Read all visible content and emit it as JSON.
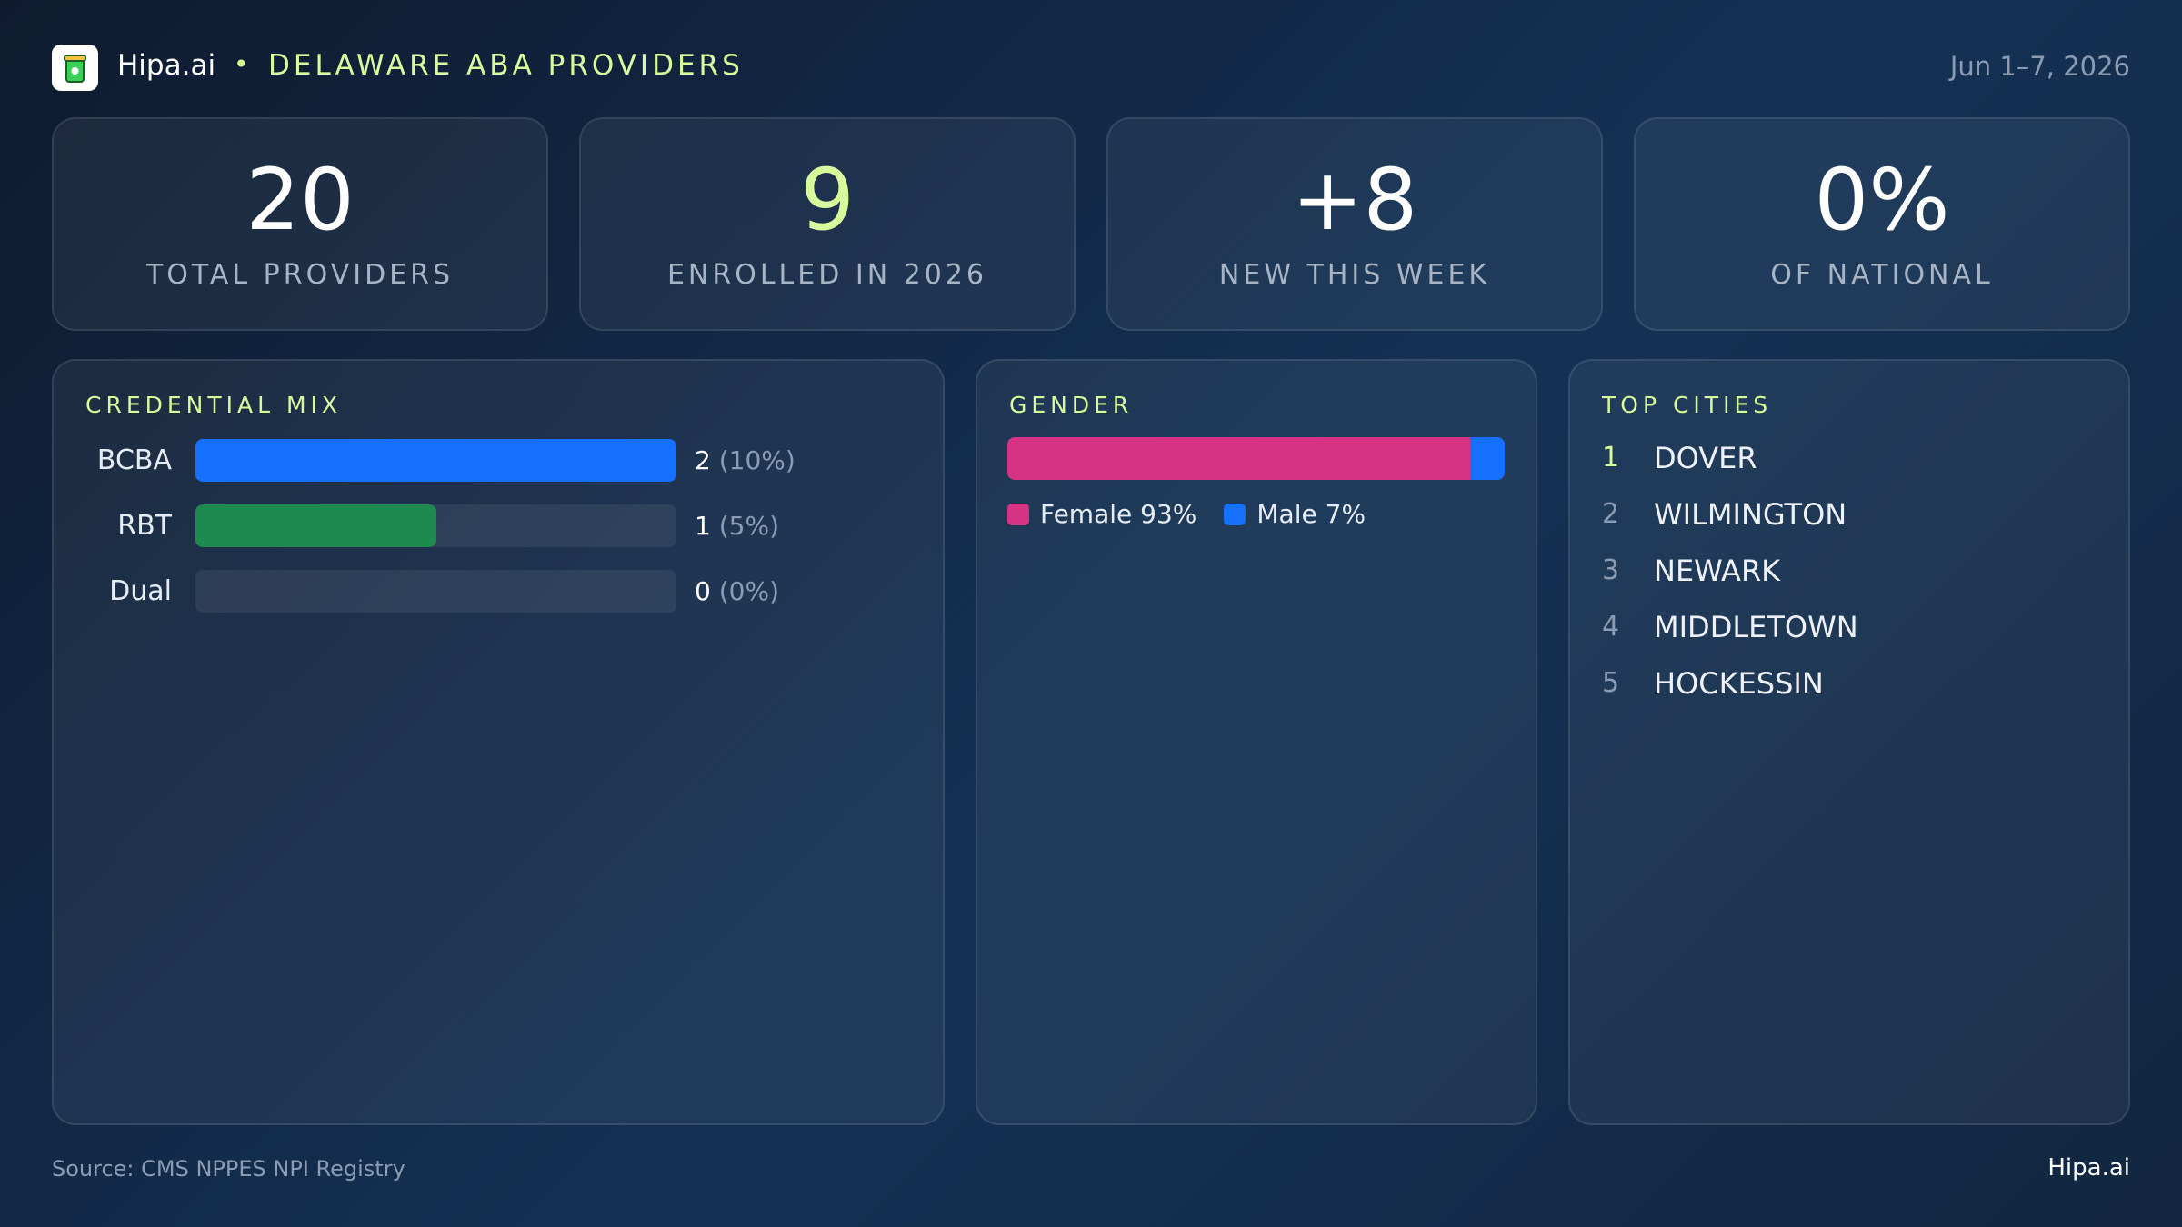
{
  "header": {
    "brand": "Hipa.ai",
    "separator": "•",
    "title": "DELAWARE ABA PROVIDERS",
    "date": "Jun 1–7, 2026"
  },
  "stats": [
    {
      "value": "20",
      "label": "TOTAL PROVIDERS",
      "color": "#ffffff"
    },
    {
      "value": "9",
      "label": "ENROLLED IN 2026",
      "color": "#d9f99d"
    },
    {
      "value": "+8",
      "label": "NEW THIS WEEK",
      "color": "#ffffff"
    },
    {
      "value": "0%",
      "label": "OF NATIONAL",
      "color": "#ffffff"
    }
  ],
  "chart_data": [
    {
      "type": "bar",
      "orientation": "horizontal",
      "title": "CREDENTIAL MIX",
      "categories": [
        "BCBA",
        "RBT",
        "Dual"
      ],
      "values": [
        2,
        1,
        0
      ],
      "percents": [
        10,
        5,
        0
      ],
      "percent_labels": [
        "(10%)",
        "(5%)",
        "(0%)"
      ],
      "colors": [
        "#1570ff",
        "#1f8a4f",
        "#5a6b82"
      ],
      "xlim": [
        0,
        2
      ]
    },
    {
      "type": "stacked-bar",
      "orientation": "horizontal",
      "title": "GENDER",
      "series": [
        {
          "name": "Female",
          "color": "#d63384",
          "values": [
            93
          ],
          "value_labels": [
            "93%"
          ]
        },
        {
          "name": "Male",
          "color": "#1570ff",
          "values": [
            7
          ],
          "value_labels": [
            "7%"
          ]
        }
      ],
      "xlim": [
        0,
        100
      ]
    }
  ],
  "top_cities": {
    "title": "TOP CITIES",
    "rows": [
      {
        "rank": 1,
        "name": "DOVER"
      },
      {
        "rank": 2,
        "name": "WILMINGTON"
      },
      {
        "rank": 3,
        "name": "NEWARK"
      },
      {
        "rank": 4,
        "name": "MIDDLETOWN"
      },
      {
        "rank": 5,
        "name": "HOCKESSIN"
      }
    ]
  },
  "footer": {
    "source": "Source: CMS NPPES NPI Registry",
    "brand": "Hipa.ai"
  }
}
